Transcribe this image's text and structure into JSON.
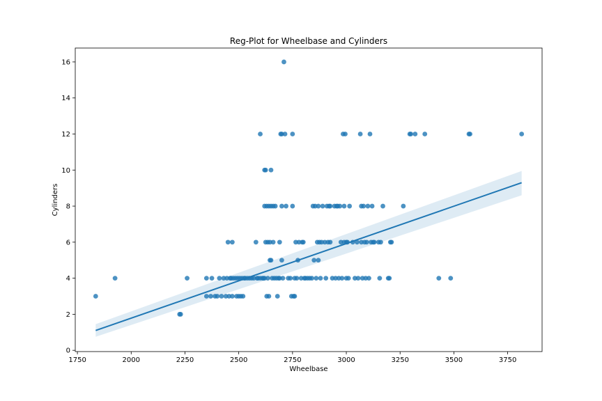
{
  "chart_data": {
    "type": "scatter",
    "title": "Reg-Plot for Wheelbase and Cylinders",
    "xlabel": "Wheelbase",
    "ylabel": "Cylinders",
    "xlim": [
      1740,
      3910
    ],
    "ylim": [
      -0.07,
      16.77
    ],
    "xticks": [
      1750,
      2000,
      2250,
      2500,
      2750,
      3000,
      3250,
      3500,
      3750
    ],
    "yticks": [
      0,
      2,
      4,
      6,
      8,
      10,
      12,
      14,
      16
    ],
    "grid": false,
    "legend": "none",
    "colors": {
      "points": "#1f77b4",
      "line": "#1f77b4",
      "band": "#1f77b4"
    },
    "regression": {
      "x": [
        1835,
        3815
      ],
      "y": [
        1.1,
        9.3
      ],
      "ci_lower": [
        0.75,
        8.6
      ],
      "ci_upper": [
        1.45,
        9.95
      ]
    },
    "points": [
      [
        1835,
        3
      ],
      [
        1925,
        4
      ],
      [
        2225,
        2
      ],
      [
        2230,
        2
      ],
      [
        2260,
        4
      ],
      [
        2350,
        3
      ],
      [
        2350,
        4
      ],
      [
        2370,
        3
      ],
      [
        2375,
        4
      ],
      [
        2390,
        3
      ],
      [
        2400,
        3
      ],
      [
        2410,
        4
      ],
      [
        2420,
        3
      ],
      [
        2430,
        4
      ],
      [
        2440,
        3
      ],
      [
        2445,
        4
      ],
      [
        2450,
        6
      ],
      [
        2455,
        3
      ],
      [
        2460,
        4
      ],
      [
        2465,
        4
      ],
      [
        2470,
        6
      ],
      [
        2470,
        3
      ],
      [
        2475,
        4
      ],
      [
        2485,
        4
      ],
      [
        2490,
        3
      ],
      [
        2495,
        4
      ],
      [
        2500,
        3
      ],
      [
        2505,
        4
      ],
      [
        2510,
        3
      ],
      [
        2515,
        4
      ],
      [
        2520,
        3
      ],
      [
        2525,
        4
      ],
      [
        2530,
        4
      ],
      [
        2540,
        4
      ],
      [
        2550,
        4
      ],
      [
        2560,
        4
      ],
      [
        2570,
        4
      ],
      [
        2580,
        6
      ],
      [
        2585,
        4
      ],
      [
        2590,
        4
      ],
      [
        2600,
        12
      ],
      [
        2600,
        4
      ],
      [
        2610,
        4
      ],
      [
        2615,
        4
      ],
      [
        2620,
        10
      ],
      [
        2620,
        8
      ],
      [
        2620,
        4
      ],
      [
        2625,
        10
      ],
      [
        2625,
        6
      ],
      [
        2630,
        8
      ],
      [
        2630,
        3
      ],
      [
        2635,
        6
      ],
      [
        2635,
        4
      ],
      [
        2640,
        8
      ],
      [
        2640,
        3
      ],
      [
        2645,
        5
      ],
      [
        2645,
        6
      ],
      [
        2650,
        10
      ],
      [
        2650,
        8
      ],
      [
        2650,
        5
      ],
      [
        2655,
        4
      ],
      [
        2660,
        8
      ],
      [
        2660,
        6
      ],
      [
        2665,
        4
      ],
      [
        2670,
        8
      ],
      [
        2675,
        4
      ],
      [
        2680,
        3
      ],
      [
        2685,
        4
      ],
      [
        2690,
        6
      ],
      [
        2690,
        4
      ],
      [
        2695,
        12
      ],
      [
        2700,
        12
      ],
      [
        2700,
        5
      ],
      [
        2700,
        8
      ],
      [
        2705,
        4
      ],
      [
        2710,
        16
      ],
      [
        2715,
        12
      ],
      [
        2720,
        8
      ],
      [
        2730,
        4
      ],
      [
        2740,
        4
      ],
      [
        2745,
        3
      ],
      [
        2750,
        12
      ],
      [
        2750,
        8
      ],
      [
        2755,
        3
      ],
      [
        2760,
        4
      ],
      [
        2760,
        3
      ],
      [
        2765,
        6
      ],
      [
        2770,
        4
      ],
      [
        2775,
        5
      ],
      [
        2780,
        6
      ],
      [
        2790,
        4
      ],
      [
        2795,
        6
      ],
      [
        2800,
        6
      ],
      [
        2805,
        4
      ],
      [
        2810,
        4
      ],
      [
        2820,
        4
      ],
      [
        2830,
        4
      ],
      [
        2840,
        4
      ],
      [
        2845,
        8
      ],
      [
        2850,
        5
      ],
      [
        2855,
        8
      ],
      [
        2860,
        4
      ],
      [
        2865,
        6
      ],
      [
        2870,
        5
      ],
      [
        2870,
        8
      ],
      [
        2875,
        6
      ],
      [
        2880,
        4
      ],
      [
        2885,
        6
      ],
      [
        2890,
        8
      ],
      [
        2900,
        6
      ],
      [
        2905,
        4
      ],
      [
        2910,
        8
      ],
      [
        2915,
        6
      ],
      [
        2920,
        8
      ],
      [
        2925,
        8
      ],
      [
        2925,
        6
      ],
      [
        2935,
        4
      ],
      [
        2945,
        8
      ],
      [
        2950,
        4
      ],
      [
        2955,
        8
      ],
      [
        2960,
        8
      ],
      [
        2965,
        4
      ],
      [
        2970,
        8
      ],
      [
        2975,
        6
      ],
      [
        2980,
        4
      ],
      [
        2985,
        12
      ],
      [
        2990,
        6
      ],
      [
        2990,
        8
      ],
      [
        2995,
        12
      ],
      [
        3000,
        6
      ],
      [
        3000,
        4
      ],
      [
        3005,
        6
      ],
      [
        3010,
        4
      ],
      [
        3015,
        8
      ],
      [
        3030,
        6
      ],
      [
        3040,
        4
      ],
      [
        3050,
        6
      ],
      [
        3055,
        4
      ],
      [
        3065,
        12
      ],
      [
        3070,
        8
      ],
      [
        3070,
        6
      ],
      [
        3075,
        4
      ],
      [
        3080,
        8
      ],
      [
        3085,
        6
      ],
      [
        3090,
        4
      ],
      [
        3095,
        6
      ],
      [
        3100,
        8
      ],
      [
        3105,
        4
      ],
      [
        3110,
        12
      ],
      [
        3115,
        6
      ],
      [
        3120,
        8
      ],
      [
        3125,
        6
      ],
      [
        3130,
        6
      ],
      [
        3150,
        6
      ],
      [
        3155,
        4
      ],
      [
        3160,
        6
      ],
      [
        3170,
        8
      ],
      [
        3195,
        4
      ],
      [
        3200,
        4
      ],
      [
        3205,
        6
      ],
      [
        3210,
        6
      ],
      [
        3265,
        8
      ],
      [
        3295,
        12
      ],
      [
        3300,
        12
      ],
      [
        3320,
        12
      ],
      [
        3365,
        12
      ],
      [
        3430,
        4
      ],
      [
        3485,
        4
      ],
      [
        3570,
        12
      ],
      [
        3575,
        12
      ],
      [
        3815,
        12
      ]
    ]
  }
}
